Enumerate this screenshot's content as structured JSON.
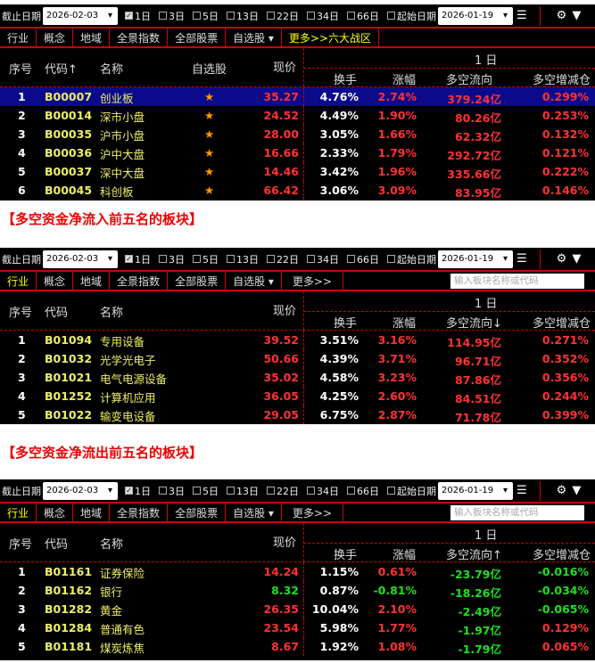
{
  "toolbar": {
    "end_label": "截止日期",
    "end_date": "2026-02-03",
    "periods": [
      "1日",
      "3日",
      "5日",
      "13日",
      "22日",
      "34日",
      "66日"
    ],
    "checked": "1日",
    "start_label": "起始日期",
    "start_date": "2026-01-19"
  },
  "tabs": [
    "行业",
    "概念",
    "地域",
    "全景指数",
    "全部股票",
    "自选股 ▾"
  ],
  "headers": {
    "idx": "序号",
    "name": "名称",
    "fav": "自选股",
    "price": "现价",
    "period": "1 日",
    "turnover": "换手",
    "change": "涨幅",
    "flow": "多空流向",
    "pos": "多空增减仓"
  },
  "colors": {
    "up": "#ff3333",
    "down": "#1fe01f",
    "selected": "#0a0a8a",
    "border": "#cc0000"
  },
  "panels": [
    {
      "more": "更多>>六大战区",
      "search": "",
      "code_header": "代码↑",
      "flow_header": "多空流向",
      "show_fav": true,
      "rows": [
        [
          "1",
          "B00007",
          "创业板",
          "35.27",
          "4.76%",
          "2.74%",
          "379.24亿",
          "0.299%"
        ],
        [
          "2",
          "B00014",
          "深市小盘",
          "24.52",
          "4.49%",
          "1.90%",
          "80.26亿",
          "0.253%"
        ],
        [
          "3",
          "B00035",
          "沪市小盘",
          "28.00",
          "3.05%",
          "1.66%",
          "62.32亿",
          "0.132%"
        ],
        [
          "4",
          "B00036",
          "沪中大盘",
          "16.66",
          "2.33%",
          "1.79%",
          "292.72亿",
          "0.121%"
        ],
        [
          "5",
          "B00037",
          "深中大盘",
          "14.46",
          "3.42%",
          "1.96%",
          "335.66亿",
          "0.222%"
        ],
        [
          "6",
          "B00045",
          "科创板",
          "66.42",
          "3.06%",
          "3.09%",
          "83.95亿",
          "0.146%"
        ]
      ]
    },
    {
      "more": "更多>>",
      "search": "输入板块名称或代码",
      "code_header": "代码",
      "flow_header": "多空流向↓",
      "show_fav": false,
      "rows": [
        [
          "1",
          "B01094",
          "专用设备",
          "39.52",
          "3.51%",
          "3.16%",
          "114.95亿",
          "0.271%"
        ],
        [
          "2",
          "B01032",
          "光学光电子",
          "50.66",
          "4.39%",
          "3.71%",
          "96.71亿",
          "0.352%"
        ],
        [
          "3",
          "B01021",
          "电气电源设备",
          "35.02",
          "4.58%",
          "3.23%",
          "87.86亿",
          "0.356%"
        ],
        [
          "4",
          "B01252",
          "计算机应用",
          "36.05",
          "4.25%",
          "2.60%",
          "84.51亿",
          "0.244%"
        ],
        [
          "5",
          "B01022",
          "输变电设备",
          "29.05",
          "6.75%",
          "2.87%",
          "71.78亿",
          "0.399%"
        ]
      ]
    },
    {
      "more": "更多>>",
      "search": "输入板块名称或代码",
      "code_header": "代码",
      "flow_header": "多空流向↑",
      "show_fav": false,
      "rows": [
        [
          "1",
          "B01161",
          "证券保险",
          "14.24",
          "1.15%",
          "0.61%",
          "-23.79亿",
          "-0.016%"
        ],
        [
          "2",
          "B01162",
          "银行",
          "8.32",
          "0.87%",
          "-0.81%",
          "-18.26亿",
          "-0.034%"
        ],
        [
          "3",
          "B01282",
          "黄金",
          "26.35",
          "10.04%",
          "2.10%",
          "-2.49亿",
          "-0.065%"
        ],
        [
          "4",
          "B01284",
          "普通有色",
          "23.54",
          "5.98%",
          "1.77%",
          "-1.97亿",
          "0.129%"
        ],
        [
          "5",
          "B01181",
          "煤炭炼焦",
          "8.67",
          "1.92%",
          "1.08%",
          "-1.79亿",
          "0.065%"
        ]
      ]
    }
  ],
  "captions": [
    "【多空资金净流入前五名的板块】",
    "【多空资金净流出前五名的板块】"
  ]
}
